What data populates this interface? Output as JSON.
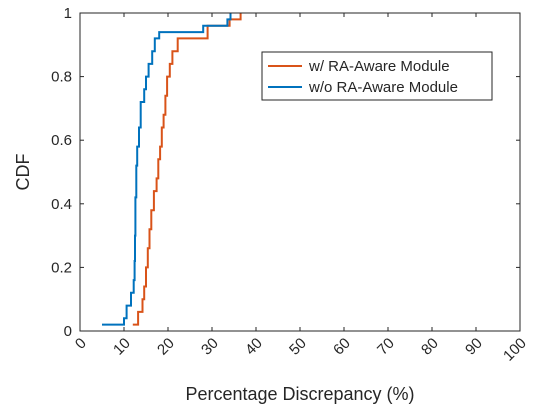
{
  "chart_data": {
    "type": "line",
    "subtype": "empirical-cdf",
    "title": "",
    "xlabel": "Percentage Discrepancy (%)",
    "ylabel": "CDF",
    "xlim": [
      0,
      100
    ],
    "ylim": [
      0,
      1
    ],
    "x_ticks": [
      0,
      10,
      20,
      30,
      40,
      50,
      60,
      70,
      80,
      90,
      100
    ],
    "x_tick_labels": [
      "0",
      "10",
      "20",
      "30",
      "40",
      "50",
      "60",
      "70",
      "80",
      "90",
      "100"
    ],
    "y_ticks": [
      0,
      0.2,
      0.4,
      0.6,
      0.8,
      1
    ],
    "y_tick_labels": [
      "0",
      "0.2",
      "0.4",
      "0.6",
      "0.8",
      "1"
    ],
    "x_tick_rotation_deg": 45,
    "grid": false,
    "box": true,
    "legend": {
      "position": "top-right-inside"
    },
    "series": [
      {
        "name": "w/ RA-Aware Module",
        "color": "#D95319",
        "steps": [
          [
            12.0,
            0.02
          ],
          [
            13.2,
            0.06
          ],
          [
            14.2,
            0.1
          ],
          [
            14.6,
            0.14
          ],
          [
            15.0,
            0.2
          ],
          [
            15.4,
            0.26
          ],
          [
            15.8,
            0.32
          ],
          [
            16.2,
            0.38
          ],
          [
            16.8,
            0.44
          ],
          [
            17.4,
            0.48
          ],
          [
            17.8,
            0.54
          ],
          [
            18.2,
            0.58
          ],
          [
            18.6,
            0.64
          ],
          [
            19.0,
            0.68
          ],
          [
            19.4,
            0.74
          ],
          [
            19.8,
            0.8
          ],
          [
            20.4,
            0.84
          ],
          [
            21.0,
            0.88
          ],
          [
            22.2,
            0.92
          ],
          [
            29.0,
            0.96
          ],
          [
            34.0,
            0.98
          ],
          [
            36.5,
            1.0
          ]
        ]
      },
      {
        "name": "w/o RA-Aware Module",
        "color": "#0072BD",
        "steps": [
          [
            5.0,
            0.02
          ],
          [
            10.0,
            0.04
          ],
          [
            10.6,
            0.08
          ],
          [
            11.6,
            0.12
          ],
          [
            12.2,
            0.16
          ],
          [
            12.4,
            0.22
          ],
          [
            12.5,
            0.3
          ],
          [
            12.6,
            0.42
          ],
          [
            12.8,
            0.52
          ],
          [
            13.0,
            0.58
          ],
          [
            13.4,
            0.64
          ],
          [
            13.8,
            0.72
          ],
          [
            14.6,
            0.76
          ],
          [
            15.0,
            0.8
          ],
          [
            15.6,
            0.84
          ],
          [
            16.4,
            0.88
          ],
          [
            17.0,
            0.92
          ],
          [
            18.0,
            0.94
          ],
          [
            28.0,
            0.96
          ],
          [
            33.5,
            0.98
          ],
          [
            34.2,
            1.0
          ]
        ]
      }
    ]
  }
}
